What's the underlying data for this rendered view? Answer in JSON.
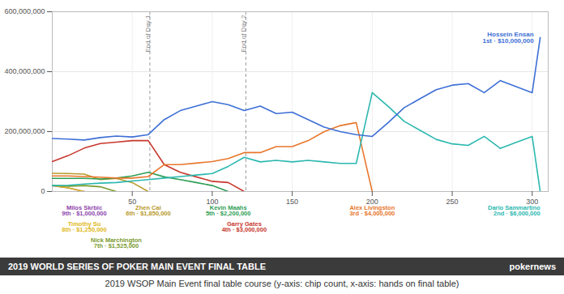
{
  "chart_data": {
    "type": "line",
    "title": "2019 WORLD SERIES OF POKER MAIN EVENT FINAL TABLE",
    "source": "pokernews",
    "caption": "2019 WSOP Main Event final table course (y-axis: chip count, x-axis: hands on final table)",
    "x": [
      0,
      10,
      20,
      30,
      40,
      50,
      60,
      70,
      80,
      90,
      100,
      110,
      120,
      130,
      140,
      150,
      160,
      170,
      180,
      190,
      200,
      210,
      220,
      230,
      240,
      250,
      260,
      270,
      280,
      290,
      300,
      305
    ],
    "xlim": [
      0,
      310
    ],
    "xticks": [
      50,
      100,
      150,
      200,
      250,
      300
    ],
    "ylim": [
      0,
      600000000
    ],
    "yticks": [
      0,
      {
        "value": 200000000,
        "label": "200,000,000"
      },
      {
        "value": 400000000,
        "label": "400,000,000"
      },
      {
        "value": 600000000,
        "label": "600,000,000"
      }
    ],
    "grid": true,
    "annotations": [
      {
        "x": 61,
        "text": "End of Day 1"
      },
      {
        "x": 121,
        "text": "End of Day 2"
      }
    ],
    "series": [
      {
        "name": "Milos Skrbic",
        "label": "9th · $1,000,000",
        "color": "#8e44ad",
        "values": [
          20000000,
          12000000,
          0,
          null,
          null,
          null,
          null,
          null,
          null,
          null,
          null,
          null,
          null,
          null,
          null,
          null,
          null,
          null,
          null,
          null,
          null,
          null,
          null,
          null,
          null,
          null,
          null,
          null,
          null,
          null,
          null,
          null
        ]
      },
      {
        "name": "Timothy Su",
        "label": "8th · $1,250,000",
        "color": "#e0b820",
        "values": [
          20000000,
          12000000,
          0,
          null,
          null,
          null,
          null,
          null,
          null,
          null,
          null,
          null,
          null,
          null,
          null,
          null,
          null,
          null,
          null,
          null,
          null,
          null,
          null,
          null,
          null,
          null,
          null,
          null,
          null,
          null,
          null,
          null
        ]
      },
      {
        "name": "Nick Marchington",
        "label": "7th · $1,525,000",
        "color": "#7a9a2e",
        "values": [
          20000000,
          18000000,
          20000000,
          16000000,
          0,
          null,
          null,
          null,
          null,
          null,
          null,
          null,
          null,
          null,
          null,
          null,
          null,
          null,
          null,
          null,
          null,
          null,
          null,
          null,
          null,
          null,
          null,
          null,
          null,
          null,
          null,
          null
        ]
      },
      {
        "name": "Zhen Cai",
        "label": "6th · $1,850,000",
        "color": "#b89a2a",
        "values": [
          61000000,
          60000000,
          58000000,
          40000000,
          44000000,
          30000000,
          0,
          null,
          null,
          null,
          null,
          null,
          null,
          null,
          null,
          null,
          null,
          null,
          null,
          null,
          null,
          null,
          null,
          null,
          null,
          null,
          null,
          null,
          null,
          null,
          null,
          null
        ]
      },
      {
        "name": "Kevin Maahs",
        "label": "5th · $2,200,000",
        "color": "#2e9e55",
        "values": [
          44000000,
          44000000,
          44000000,
          42000000,
          45000000,
          52000000,
          64000000,
          49000000,
          40000000,
          30000000,
          20000000,
          0,
          null,
          null,
          null,
          null,
          null,
          null,
          null,
          null,
          null,
          null,
          null,
          null,
          null,
          null,
          null,
          null,
          null,
          null,
          null,
          null
        ]
      },
      {
        "name": "Garry Gates",
        "label": "4th · $3,000,000",
        "color": "#c8372d",
        "values": [
          100000000,
          120000000,
          145000000,
          160000000,
          165000000,
          170000000,
          170000000,
          90000000,
          64000000,
          49000000,
          34000000,
          30000000,
          0,
          null,
          null,
          null,
          null,
          null,
          null,
          null,
          null,
          null,
          null,
          null,
          null,
          null,
          null,
          null,
          null,
          null,
          null,
          null
        ]
      },
      {
        "name": "Alex Livingston",
        "label": "3rd · $4,000,000",
        "color": "#e8762b",
        "values": [
          52000000,
          52000000,
          50000000,
          48000000,
          45000000,
          45000000,
          50000000,
          90000000,
          90000000,
          95000000,
          100000000,
          110000000,
          130000000,
          130000000,
          150000000,
          150000000,
          170000000,
          200000000,
          220000000,
          230000000,
          0,
          null,
          null,
          null,
          null,
          null,
          null,
          null,
          null,
          null,
          null,
          null
        ]
      },
      {
        "name": "Dario Sammartino",
        "label": "2nd · $6,000,000",
        "color": "#2bb8b0",
        "values": [
          20000000,
          21000000,
          25000000,
          28000000,
          30000000,
          35000000,
          40000000,
          45000000,
          50000000,
          55000000,
          60000000,
          84000000,
          114000000,
          99000000,
          104000000,
          99000000,
          104000000,
          99000000,
          94000000,
          94000000,
          330000000,
          284000000,
          234000000,
          204000000,
          174000000,
          159000000,
          154000000,
          184000000,
          144000000,
          164000000,
          184000000,
          0
        ]
      },
      {
        "name": "Hossein Ensan",
        "label": "1st · $10,000,000",
        "color": "#3d6fd6",
        "values": [
          177000000,
          175000000,
          172000000,
          180000000,
          185000000,
          182000000,
          190000000,
          240000000,
          270000000,
          285000000,
          300000000,
          290000000,
          270000000,
          285000000,
          260000000,
          265000000,
          240000000,
          215000000,
          200000000,
          190000000,
          184000000,
          230000000,
          280000000,
          310000000,
          340000000,
          355000000,
          360000000,
          330000000,
          370000000,
          350000000,
          330000000,
          514000000
        ]
      }
    ]
  }
}
